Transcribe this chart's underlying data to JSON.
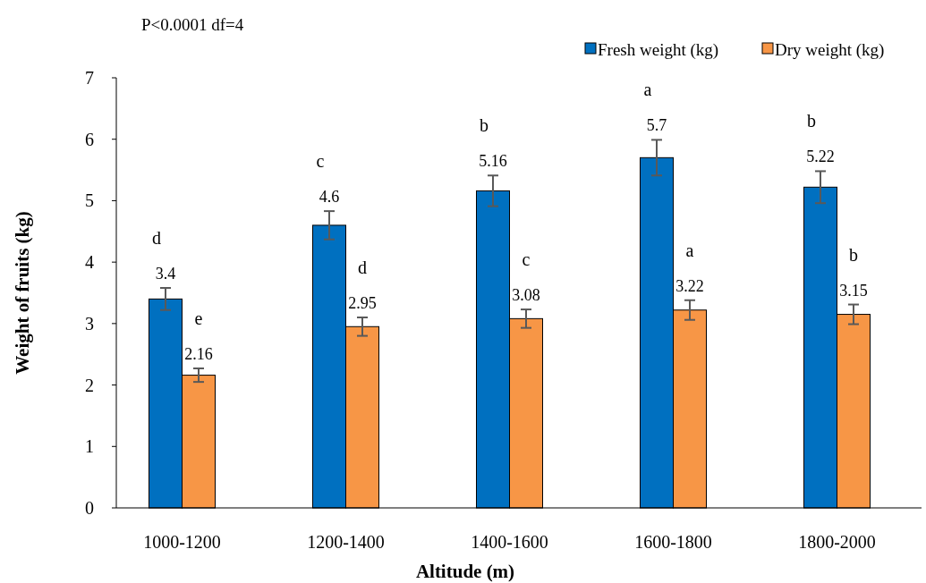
{
  "chart_data": {
    "type": "bar",
    "xlabel": "Altitude (m)",
    "ylabel": "Weight of fruits (kg)",
    "categories": [
      "1000-1200",
      "1200-1400",
      "1400-1600",
      "1600-1800",
      "1800-2000"
    ],
    "series": [
      {
        "name": "Fresh weight (kg)",
        "color": "#0070c0",
        "values": [
          3.4,
          4.6,
          5.16,
          5.7,
          5.22
        ],
        "errors": [
          0.18,
          0.23,
          0.25,
          0.29,
          0.26
        ]
      },
      {
        "name": "Dry weight (kg)",
        "color": "#f79646",
        "values": [
          2.16,
          2.95,
          3.08,
          3.22,
          3.15
        ],
        "errors": [
          0.11,
          0.15,
          0.15,
          0.16,
          0.16
        ]
      }
    ],
    "ylim": [
      0,
      7
    ],
    "yticks": [
      0,
      1,
      2,
      3,
      4,
      5,
      6,
      7
    ],
    "data_labels": true,
    "legend": "top right",
    "grid": false,
    "annotations": [
      "P<0.0001 df=4",
      "d",
      "e",
      "c",
      "d",
      "b",
      "c",
      "a",
      "a",
      "b",
      "b"
    ]
  }
}
